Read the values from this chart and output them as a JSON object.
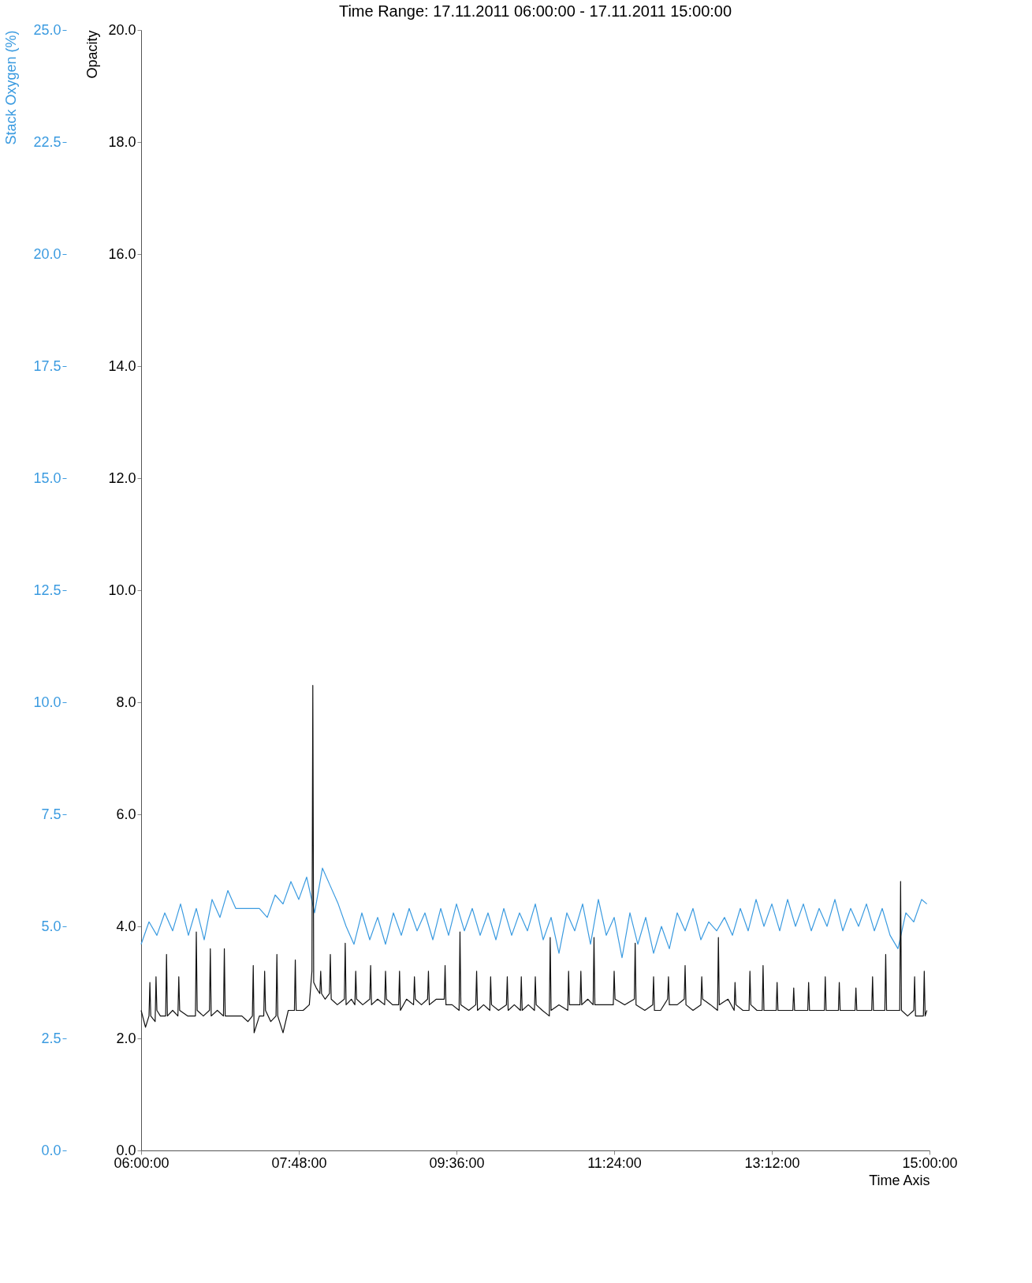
{
  "chart_data": {
    "type": "line",
    "title": "Time Range: 17.11.2011 06:00:00 - 17.11.2011 15:00:00",
    "xlabel": "Time Axis",
    "ylabel": "Opacity",
    "y2label": "Stack Oxygen (%)",
    "xlim": [
      6,
      15
    ],
    "xticks": [
      {
        "value": 6,
        "label": "06:00:00"
      },
      {
        "value": 7.8,
        "label": "07:48:00"
      },
      {
        "value": 9.6,
        "label": "09:36:00"
      },
      {
        "value": 11.4,
        "label": "11:24:00"
      },
      {
        "value": 13.2,
        "label": "13:12:00"
      },
      {
        "value": 15,
        "label": "15:00:00"
      }
    ],
    "ylim": [
      0,
      20
    ],
    "yticks": [
      {
        "value": 0,
        "label": "0.0"
      },
      {
        "value": 2,
        "label": "2.0"
      },
      {
        "value": 4,
        "label": "4.0"
      },
      {
        "value": 6,
        "label": "6.0"
      },
      {
        "value": 8,
        "label": "8.0"
      },
      {
        "value": 10,
        "label": "10.0"
      },
      {
        "value": 12,
        "label": "12.0"
      },
      {
        "value": 14,
        "label": "14.0"
      },
      {
        "value": 16,
        "label": "16.0"
      },
      {
        "value": 18,
        "label": "18.0"
      },
      {
        "value": 20,
        "label": "20.0"
      }
    ],
    "y2lim": [
      0,
      25
    ],
    "y2ticks": [
      {
        "value": 0,
        "label": "0.0"
      },
      {
        "value": 2.5,
        "label": "2.5"
      },
      {
        "value": 5,
        "label": "5.0"
      },
      {
        "value": 7.5,
        "label": "7.5"
      },
      {
        "value": 10,
        "label": "10.0"
      },
      {
        "value": 12.5,
        "label": "12.5"
      },
      {
        "value": 15,
        "label": "15.0"
      },
      {
        "value": 17.5,
        "label": "17.5"
      },
      {
        "value": 20,
        "label": "20.0"
      },
      {
        "value": 22.5,
        "label": "22.5"
      },
      {
        "value": 25,
        "label": "25.0"
      }
    ],
    "grid": false,
    "legend": false,
    "marker": "none",
    "line_style": "solid",
    "series": [
      {
        "color": "#3b9be0",
        "axis": "y2",
        "x": [
          6.0,
          6.09,
          6.18,
          6.27,
          6.36,
          6.45,
          6.54,
          6.63,
          6.72,
          6.81,
          6.9,
          6.99,
          7.08,
          7.17,
          7.26,
          7.35,
          7.44,
          7.53,
          7.62,
          7.71,
          7.8,
          7.89,
          7.98,
          8.07,
          8.16,
          8.25,
          8.34,
          8.43,
          8.52,
          8.61,
          8.7,
          8.79,
          8.88,
          8.97,
          9.06,
          9.15,
          9.24,
          9.33,
          9.42,
          9.51,
          9.6,
          9.69,
          9.78,
          9.87,
          9.96,
          10.05,
          10.14,
          10.23,
          10.32,
          10.41,
          10.5,
          10.59,
          10.68,
          10.77,
          10.86,
          10.95,
          11.04,
          11.13,
          11.22,
          11.31,
          11.4,
          11.49,
          11.58,
          11.67,
          11.76,
          11.85,
          11.94,
          12.03,
          12.12,
          12.21,
          12.3,
          12.39,
          12.48,
          12.57,
          12.66,
          12.75,
          12.84,
          12.93,
          13.02,
          13.11,
          13.2,
          13.29,
          13.38,
          13.47,
          13.56,
          13.65,
          13.74,
          13.83,
          13.92,
          14.01,
          14.1,
          14.19,
          14.28,
          14.37,
          14.46,
          14.55,
          14.64,
          14.73,
          14.82,
          14.91,
          14.97
        ],
        "values": [
          4.6,
          5.1,
          4.8,
          5.3,
          4.9,
          5.5,
          4.8,
          5.4,
          4.7,
          5.6,
          5.2,
          5.8,
          5.4,
          5.4,
          5.4,
          5.4,
          5.2,
          5.7,
          5.5,
          6.0,
          5.6,
          6.1,
          5.3,
          6.3,
          5.9,
          5.5,
          5.0,
          4.6,
          5.3,
          4.7,
          5.2,
          4.6,
          5.3,
          4.8,
          5.4,
          4.9,
          5.3,
          4.7,
          5.4,
          4.8,
          5.5,
          4.9,
          5.4,
          4.8,
          5.3,
          4.7,
          5.4,
          4.8,
          5.3,
          4.9,
          5.5,
          4.7,
          5.2,
          4.4,
          5.3,
          4.9,
          5.5,
          4.6,
          5.6,
          4.8,
          5.2,
          4.3,
          5.3,
          4.6,
          5.2,
          4.4,
          5.0,
          4.5,
          5.3,
          4.9,
          5.4,
          4.7,
          5.1,
          4.9,
          5.2,
          4.8,
          5.4,
          4.9,
          5.6,
          5.0,
          5.5,
          4.9,
          5.6,
          5.0,
          5.5,
          4.9,
          5.4,
          5.0,
          5.6,
          4.9,
          5.4,
          5.0,
          5.5,
          4.9,
          5.4,
          4.8,
          4.5,
          5.3,
          5.1,
          5.6,
          5.5
        ]
      },
      {
        "color": "#111111",
        "axis": "y",
        "x": [
          6.0,
          6.05,
          6.09,
          6.1,
          6.11,
          6.16,
          6.17,
          6.18,
          6.22,
          6.28,
          6.29,
          6.3,
          6.36,
          6.42,
          6.43,
          6.44,
          6.53,
          6.62,
          6.63,
          6.64,
          6.71,
          6.78,
          6.79,
          6.8,
          6.87,
          6.94,
          6.95,
          6.96,
          7.05,
          7.15,
          7.22,
          7.27,
          7.28,
          7.29,
          7.35,
          7.4,
          7.41,
          7.42,
          7.48,
          7.54,
          7.55,
          7.56,
          7.62,
          7.68,
          7.75,
          7.76,
          7.77,
          7.85,
          7.92,
          7.95,
          7.96,
          7.97,
          8.0,
          8.04,
          8.05,
          8.06,
          8.1,
          8.15,
          8.16,
          8.17,
          8.24,
          8.32,
          8.33,
          8.34,
          8.4,
          8.44,
          8.45,
          8.46,
          8.53,
          8.61,
          8.62,
          8.63,
          8.7,
          8.78,
          8.79,
          8.8,
          8.87,
          8.94,
          8.95,
          8.96,
          9.03,
          9.11,
          9.12,
          9.13,
          9.2,
          9.27,
          9.28,
          9.29,
          9.37,
          9.46,
          9.47,
          9.48,
          9.55,
          9.63,
          9.64,
          9.65,
          9.74,
          9.82,
          9.83,
          9.84,
          9.91,
          9.98,
          9.99,
          10.0,
          10.08,
          10.17,
          10.18,
          10.19,
          10.26,
          10.33,
          10.34,
          10.35,
          10.42,
          10.49,
          10.5,
          10.51,
          10.58,
          10.66,
          10.67,
          10.68,
          10.77,
          10.87,
          10.88,
          10.89,
          10.95,
          11.01,
          11.02,
          11.03,
          11.1,
          11.16,
          11.17,
          11.18,
          11.28,
          11.39,
          11.4,
          11.41,
          11.52,
          11.63,
          11.64,
          11.65,
          11.75,
          11.84,
          11.85,
          11.86,
          11.93,
          12.01,
          12.02,
          12.03,
          12.12,
          12.2,
          12.21,
          12.22,
          12.3,
          12.39,
          12.4,
          12.41,
          12.5,
          12.58,
          12.59,
          12.6,
          12.7,
          12.77,
          12.78,
          12.79,
          12.87,
          12.94,
          12.95,
          12.96,
          13.03,
          13.09,
          13.1,
          13.11,
          13.18,
          13.25,
          13.26,
          13.27,
          13.35,
          13.44,
          13.45,
          13.46,
          13.54,
          13.61,
          13.62,
          13.63,
          13.72,
          13.8,
          13.81,
          13.82,
          13.9,
          13.96,
          13.97,
          13.98,
          14.06,
          14.15,
          14.16,
          14.17,
          14.25,
          14.34,
          14.35,
          14.36,
          14.43,
          14.49,
          14.5,
          14.51,
          14.58,
          14.66,
          14.67,
          14.68,
          14.75,
          14.82,
          14.83,
          14.84,
          14.9,
          14.93,
          14.94,
          14.95,
          14.97
        ],
        "values": [
          2.5,
          2.2,
          2.4,
          3.0,
          2.4,
          2.3,
          3.1,
          2.5,
          2.4,
          2.4,
          3.5,
          2.4,
          2.5,
          2.4,
          3.1,
          2.5,
          2.4,
          2.4,
          3.9,
          2.5,
          2.4,
          2.5,
          3.6,
          2.4,
          2.5,
          2.4,
          3.6,
          2.4,
          2.4,
          2.4,
          2.3,
          2.4,
          3.3,
          2.1,
          2.4,
          2.4,
          3.2,
          2.5,
          2.3,
          2.4,
          3.5,
          2.4,
          2.1,
          2.5,
          2.5,
          3.4,
          2.5,
          2.5,
          2.6,
          3.2,
          8.3,
          3.0,
          2.9,
          2.8,
          3.2,
          2.8,
          2.7,
          2.8,
          3.5,
          2.7,
          2.6,
          2.7,
          3.7,
          2.6,
          2.7,
          2.6,
          3.2,
          2.7,
          2.6,
          2.7,
          3.3,
          2.6,
          2.7,
          2.6,
          3.2,
          2.7,
          2.6,
          2.6,
          3.2,
          2.5,
          2.7,
          2.6,
          3.1,
          2.7,
          2.6,
          2.7,
          3.2,
          2.6,
          2.7,
          2.7,
          3.3,
          2.6,
          2.6,
          2.5,
          3.9,
          2.6,
          2.5,
          2.6,
          3.2,
          2.5,
          2.6,
          2.5,
          3.1,
          2.6,
          2.5,
          2.6,
          3.1,
          2.5,
          2.6,
          2.5,
          3.1,
          2.5,
          2.6,
          2.5,
          3.1,
          2.6,
          2.5,
          2.4,
          3.8,
          2.5,
          2.6,
          2.5,
          3.2,
          2.6,
          2.6,
          2.6,
          3.2,
          2.6,
          2.7,
          2.6,
          3.8,
          2.6,
          2.6,
          2.6,
          3.2,
          2.7,
          2.6,
          2.7,
          3.7,
          2.6,
          2.5,
          2.6,
          3.1,
          2.5,
          2.5,
          2.7,
          3.1,
          2.6,
          2.6,
          2.7,
          3.3,
          2.6,
          2.5,
          2.6,
          3.1,
          2.7,
          2.6,
          2.5,
          3.8,
          2.6,
          2.7,
          2.5,
          3.0,
          2.6,
          2.5,
          2.5,
          3.2,
          2.6,
          2.5,
          2.5,
          3.3,
          2.5,
          2.5,
          2.5,
          3.0,
          2.5,
          2.5,
          2.5,
          2.9,
          2.5,
          2.5,
          2.5,
          3.0,
          2.5,
          2.5,
          2.5,
          3.1,
          2.5,
          2.5,
          2.5,
          3.0,
          2.5,
          2.5,
          2.5,
          2.9,
          2.5,
          2.5,
          2.5,
          3.1,
          2.5,
          2.5,
          2.5,
          3.5,
          2.5,
          2.5,
          2.5,
          4.8,
          2.5,
          2.4,
          2.5,
          3.1,
          2.4,
          2.4,
          2.4,
          3.2,
          2.4,
          2.5
        ]
      }
    ]
  }
}
